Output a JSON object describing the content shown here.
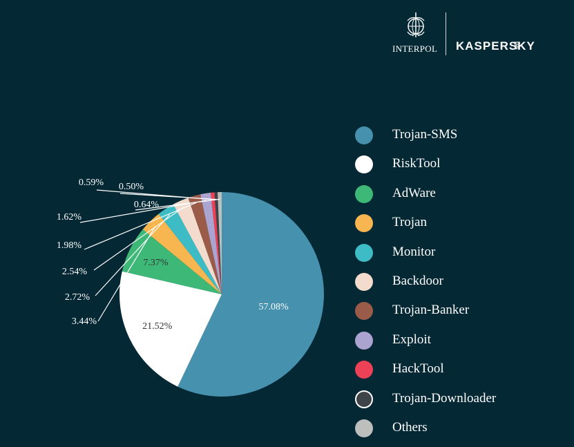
{
  "branding": {
    "interpol_label": "INTERPOL",
    "kaspersky_label": "KASPERSKY",
    "kaspersky_suffix": "lab"
  },
  "colors": {
    "background": "#052835",
    "text": "#ffffff",
    "leader_line": "#ffffff"
  },
  "chart_data": {
    "type": "pie",
    "title": "",
    "start_angle_deg": 0,
    "direction": "clockwise",
    "legend_placement": "right",
    "categories": [
      "Trojan-SMS",
      "RiskTool",
      "AdWare",
      "Trojan",
      "Monitor",
      "Backdoor",
      "Trojan-Banker",
      "Exploit",
      "HackTool",
      "Trojan-Downloader",
      "Others"
    ],
    "values": [
      57.08,
      21.52,
      7.37,
      3.44,
      2.72,
      2.54,
      1.98,
      1.62,
      0.59,
      0.5,
      0.64
    ],
    "labels": [
      "57.08%",
      "21.52%",
      "7.37%",
      "3.44%",
      "2.72%",
      "2.54%",
      "1.98%",
      "1.62%",
      "0.59%",
      "0.50%",
      "0.64%"
    ],
    "colors": [
      "#4591ae",
      "#ffffff",
      "#3eb877",
      "#f7b64f",
      "#3dbcc5",
      "#f3dccd",
      "#9a5c48",
      "#aca4d0",
      "#ec4156",
      "#3e4447",
      "#bdbfbd"
    ],
    "label_text_colors": [
      "#ffffff",
      "#333333",
      "#333333",
      "#ffffff",
      "#ffffff",
      "#ffffff",
      "#ffffff",
      "#ffffff",
      "#ffffff",
      "#ffffff",
      "#ffffff"
    ]
  }
}
